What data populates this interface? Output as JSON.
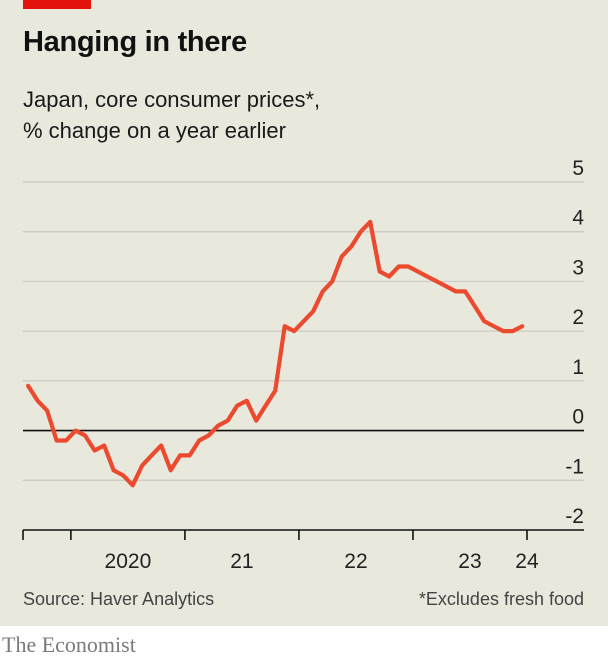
{
  "header": {
    "title": "Hanging in there",
    "subtitle_line1": "Japan, core consumer prices*,",
    "subtitle_line2": "% change on a year earlier"
  },
  "footer": {
    "source": "Source: Haver Analytics",
    "footnote": "*Excludes fresh food",
    "brand": "The Economist"
  },
  "colors": {
    "accent": "#e3120b",
    "line": "#eb4a2e",
    "background": "#e9e8dd",
    "grid": "#c9c9c2"
  },
  "chart_data": {
    "type": "line",
    "ylim": [
      -2,
      5
    ],
    "yticks": [
      5,
      4,
      3,
      2,
      1,
      0,
      -1,
      -2
    ],
    "ytick_labels": [
      "5",
      "4",
      "3",
      "2",
      "1",
      "0",
      "-1",
      "-2"
    ],
    "xlim": [
      2019.58,
      2024.5
    ],
    "year_boundaries": [
      2020,
      2021,
      2022,
      2023,
      2024
    ],
    "xtick_labels": [
      {
        "label": "2020",
        "at": 2020.5
      },
      {
        "label": "21",
        "at": 2021.5
      },
      {
        "label": "22",
        "at": 2022.5
      },
      {
        "label": "23",
        "at": 2023.5
      },
      {
        "label": "24",
        "at": 2024.0
      }
    ],
    "grid": true,
    "legend": "none",
    "series": [
      {
        "x": [
          2019.625,
          2019.708,
          2019.792,
          2019.875,
          2019.958,
          2020.042,
          2020.125,
          2020.208,
          2020.292,
          2020.375,
          2020.458,
          2020.542,
          2020.625,
          2020.708,
          2020.792,
          2020.875,
          2020.958,
          2021.042,
          2021.125,
          2021.208,
          2021.292,
          2021.375,
          2021.458,
          2021.542,
          2021.625,
          2021.708,
          2021.792,
          2021.875,
          2021.958,
          2022.042,
          2022.125,
          2022.208,
          2022.292,
          2022.375,
          2022.458,
          2022.542,
          2022.625,
          2022.708,
          2022.792,
          2022.875,
          2022.958,
          2023.042,
          2023.125,
          2023.208,
          2023.292,
          2023.375,
          2023.458,
          2023.542,
          2023.625,
          2023.708,
          2023.792,
          2023.875,
          2023.958
        ],
        "values": [
          0.9,
          0.6,
          0.4,
          -0.2,
          -0.2,
          0.0,
          -0.1,
          -0.4,
          -0.3,
          -0.8,
          -0.9,
          -1.1,
          -0.7,
          -0.5,
          -0.3,
          -0.8,
          -0.5,
          -0.5,
          -0.2,
          -0.1,
          0.1,
          0.2,
          0.5,
          0.6,
          0.2,
          0.5,
          0.8,
          2.1,
          2.0,
          2.2,
          2.4,
          2.8,
          3.0,
          3.5,
          3.7,
          4.0,
          4.2,
          3.2,
          3.1,
          3.3,
          3.3,
          3.2,
          3.1,
          3.0,
          2.9,
          2.8,
          2.8,
          2.5,
          2.2,
          2.1,
          2.0,
          2.0,
          2.1
        ]
      }
    ]
  }
}
